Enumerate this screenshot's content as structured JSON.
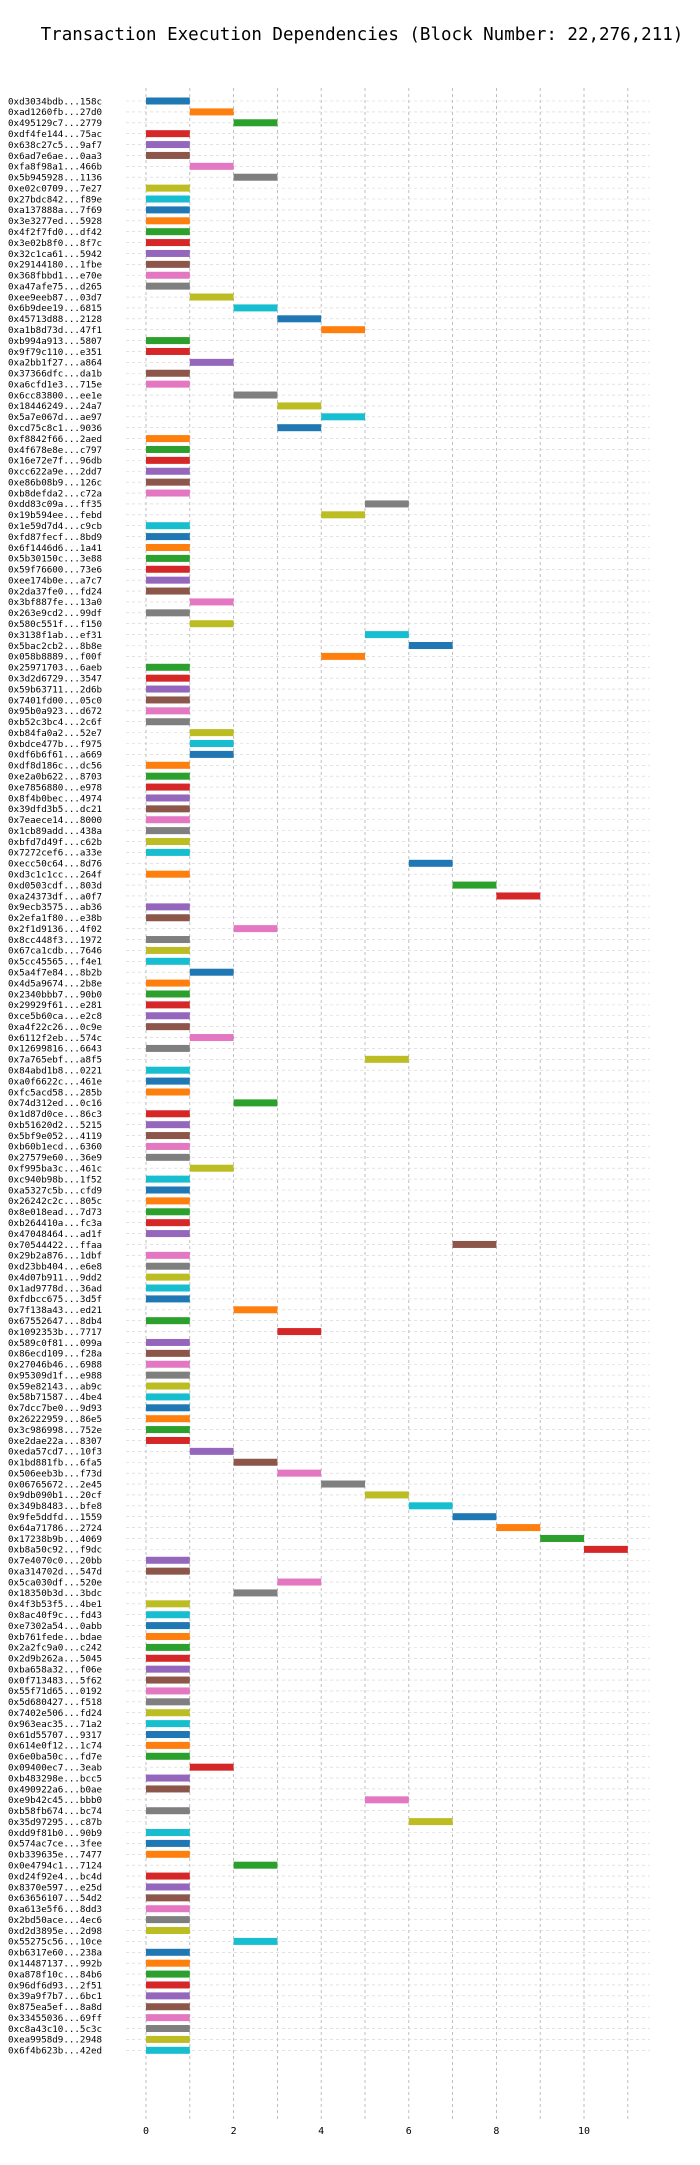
{
  "chart_data": {
    "type": "bar",
    "orientation": "horizontal",
    "title": "Transaction Execution Dependencies (Block Number: 22,276,211)",
    "xlabel": "",
    "ylabel": "",
    "xlim": [
      -0.5,
      11.5
    ],
    "xticks": [
      0,
      2,
      4,
      6,
      8,
      10
    ],
    "grid": true,
    "colors": [
      "#1f77b4",
      "#ff7f0e",
      "#2ca02c",
      "#d62728",
      "#9467bd",
      "#8c564b",
      "#e377c2",
      "#7f7f7f",
      "#bcbd22",
      "#17becf"
    ],
    "transactions": [
      {
        "label": "0xd3034bdb...158c",
        "start": 0
      },
      {
        "label": "0xad1260fb...27d0",
        "start": 1
      },
      {
        "label": "0x495129c7...2779",
        "start": 2
      },
      {
        "label": "0xdf4fe144...75ac",
        "start": 0
      },
      {
        "label": "0x638c27c5...9af7",
        "start": 0
      },
      {
        "label": "0x6ad7e6ae...0aa3",
        "start": 0
      },
      {
        "label": "0xfa8f98a1...466b",
        "start": 1
      },
      {
        "label": "0x5b945928...1136",
        "start": 2
      },
      {
        "label": "0xe02c0709...7e27",
        "start": 0
      },
      {
        "label": "0x27bdc842...f89e",
        "start": 0
      },
      {
        "label": "0xa137888a...7f69",
        "start": 0
      },
      {
        "label": "0x3e3277ed...5928",
        "start": 0
      },
      {
        "label": "0x4f2f7fd0...df42",
        "start": 0
      },
      {
        "label": "0x3e02b8f0...8f7c",
        "start": 0
      },
      {
        "label": "0x32c1ca61...5942",
        "start": 0
      },
      {
        "label": "0x29144180...1fbe",
        "start": 0
      },
      {
        "label": "0x368fbbd1...e70e",
        "start": 0
      },
      {
        "label": "0xa47afe75...d265",
        "start": 0
      },
      {
        "label": "0xee9eeb87...03d7",
        "start": 1
      },
      {
        "label": "0x6b9dee19...6815",
        "start": 2
      },
      {
        "label": "0x45713d88...2128",
        "start": 3
      },
      {
        "label": "0xa1b8d73d...47f1",
        "start": 4
      },
      {
        "label": "0xb994a913...5807",
        "start": 0
      },
      {
        "label": "0x9f79c110...e351",
        "start": 0
      },
      {
        "label": "0xa2bb1f27...a864",
        "start": 1
      },
      {
        "label": "0x37366dfc...da1b",
        "start": 0
      },
      {
        "label": "0xa6cfd1e3...715e",
        "start": 0
      },
      {
        "label": "0x6cc83800...ee1e",
        "start": 2
      },
      {
        "label": "0x18446249...24a7",
        "start": 3
      },
      {
        "label": "0x5a7e067d...ae97",
        "start": 4
      },
      {
        "label": "0xcd75c8c1...9036",
        "start": 3
      },
      {
        "label": "0xf8842f66...2aed",
        "start": 0
      },
      {
        "label": "0x4f678e8e...c797",
        "start": 0
      },
      {
        "label": "0x16e72e7f...96db",
        "start": 0
      },
      {
        "label": "0xcc622a9e...2dd7",
        "start": 0
      },
      {
        "label": "0xe86b08b9...126c",
        "start": 0
      },
      {
        "label": "0xb8defda2...c72a",
        "start": 0
      },
      {
        "label": "0xdd83c09a...ff35",
        "start": 5
      },
      {
        "label": "0x19b594ee...febd",
        "start": 4
      },
      {
        "label": "0x1e59d7d4...c9cb",
        "start": 0
      },
      {
        "label": "0xfd87fecf...8bd9",
        "start": 0
      },
      {
        "label": "0x6f1446d6...1a41",
        "start": 0
      },
      {
        "label": "0x5b30150c...3e88",
        "start": 0
      },
      {
        "label": "0x59f76600...73e6",
        "start": 0
      },
      {
        "label": "0xee174b0e...a7c7",
        "start": 0
      },
      {
        "label": "0x2da37fe0...fd24",
        "start": 0
      },
      {
        "label": "0x3bf887fe...13a0",
        "start": 1
      },
      {
        "label": "0x263e9cd2...99df",
        "start": 0
      },
      {
        "label": "0x580c551f...f150",
        "start": 1
      },
      {
        "label": "0x3138f1ab...ef31",
        "start": 5
      },
      {
        "label": "0x5bac2cb2...8b8e",
        "start": 6
      },
      {
        "label": "0x058b8889...f00f",
        "start": 4
      },
      {
        "label": "0x25971703...6aeb",
        "start": 0
      },
      {
        "label": "0x3d2d6729...3547",
        "start": 0
      },
      {
        "label": "0x59b63711...2d6b",
        "start": 0
      },
      {
        "label": "0x7401fd00...05c0",
        "start": 0
      },
      {
        "label": "0x95b0a923...d672",
        "start": 0
      },
      {
        "label": "0xb52c3bc4...2c6f",
        "start": 0
      },
      {
        "label": "0xb84fa0a2...52e7",
        "start": 1
      },
      {
        "label": "0xbdce477b...f975",
        "start": 1
      },
      {
        "label": "0xdf6b6f61...a669",
        "start": 1
      },
      {
        "label": "0xdf8d186c...dc56",
        "start": 0
      },
      {
        "label": "0xe2a0b622...8703",
        "start": 0
      },
      {
        "label": "0xe7856880...e978",
        "start": 0
      },
      {
        "label": "0x8f4b0bec...4974",
        "start": 0
      },
      {
        "label": "0x39dfd3b5...dc21",
        "start": 0
      },
      {
        "label": "0x7eaece14...8000",
        "start": 0
      },
      {
        "label": "0x1cb89add...438a",
        "start": 0
      },
      {
        "label": "0xbfd7d49f...c62b",
        "start": 0
      },
      {
        "label": "0x7272cef6...a33e",
        "start": 0
      },
      {
        "label": "0xecc50c64...8d76",
        "start": 6
      },
      {
        "label": "0xd3c1c1cc...264f",
        "start": 0
      },
      {
        "label": "0xd0503cdf...803d",
        "start": 7
      },
      {
        "label": "0xa24373df...a0f7",
        "start": 8
      },
      {
        "label": "0x9ecb3575...ab36",
        "start": 0
      },
      {
        "label": "0x2efa1f80...e38b",
        "start": 0
      },
      {
        "label": "0x2f1d9136...4f02",
        "start": 2
      },
      {
        "label": "0x8cc448f3...1972",
        "start": 0
      },
      {
        "label": "0x67ca1cdb...7646",
        "start": 0
      },
      {
        "label": "0x5cc45565...f4e1",
        "start": 0
      },
      {
        "label": "0x5a4f7e84...8b2b",
        "start": 1
      },
      {
        "label": "0x4d5a9674...2b8e",
        "start": 0
      },
      {
        "label": "0x2340bbb7...90b0",
        "start": 0
      },
      {
        "label": "0x29929f61...e281",
        "start": 0
      },
      {
        "label": "0xce5b60ca...e2c8",
        "start": 0
      },
      {
        "label": "0xa4f22c26...0c9e",
        "start": 0
      },
      {
        "label": "0x6112f2eb...574c",
        "start": 1
      },
      {
        "label": "0x12699816...6643",
        "start": 0
      },
      {
        "label": "0x7a765ebf...a8f5",
        "start": 5
      },
      {
        "label": "0x84abd1b8...0221",
        "start": 0
      },
      {
        "label": "0xa0f6622c...461e",
        "start": 0
      },
      {
        "label": "0xfc5acd58...285b",
        "start": 0
      },
      {
        "label": "0x74d312ed...0c16",
        "start": 2
      },
      {
        "label": "0x1d87d0ce...86c3",
        "start": 0
      },
      {
        "label": "0xb51620d2...5215",
        "start": 0
      },
      {
        "label": "0x5bf9e052...4119",
        "start": 0
      },
      {
        "label": "0xb60b1ecd...6360",
        "start": 0
      },
      {
        "label": "0x27579e60...36e9",
        "start": 0
      },
      {
        "label": "0xf995ba3c...461c",
        "start": 1
      },
      {
        "label": "0xc940b98b...1f52",
        "start": 0
      },
      {
        "label": "0xa5327c5b...cfd9",
        "start": 0
      },
      {
        "label": "0x26242c2c...805c",
        "start": 0
      },
      {
        "label": "0x8e018ead...7d73",
        "start": 0
      },
      {
        "label": "0xb264410a...fc3a",
        "start": 0
      },
      {
        "label": "0x47048464...ad1f",
        "start": 0
      },
      {
        "label": "0x70544422...ffaa",
        "start": 7
      },
      {
        "label": "0x29b2a876...1dbf",
        "start": 0
      },
      {
        "label": "0xd23bb404...e6e8",
        "start": 0
      },
      {
        "label": "0x4d07b911...9dd2",
        "start": 0
      },
      {
        "label": "0x1ad9778d...36ad",
        "start": 0
      },
      {
        "label": "0xfdbcc675...3d5f",
        "start": 0
      },
      {
        "label": "0x7f138a43...ed21",
        "start": 2
      },
      {
        "label": "0x67552647...8db4",
        "start": 0
      },
      {
        "label": "0x1092353b...7717",
        "start": 3
      },
      {
        "label": "0x589c0f81...099a",
        "start": 0
      },
      {
        "label": "0x86ecd109...f28a",
        "start": 0
      },
      {
        "label": "0x27046b46...6988",
        "start": 0
      },
      {
        "label": "0x95309d1f...e988",
        "start": 0
      },
      {
        "label": "0x59e82143...ab9c",
        "start": 0
      },
      {
        "label": "0x58b71587...4be4",
        "start": 0
      },
      {
        "label": "0x7dcc7be0...9d93",
        "start": 0
      },
      {
        "label": "0x26222959...86e5",
        "start": 0
      },
      {
        "label": "0x3c986998...752e",
        "start": 0
      },
      {
        "label": "0xe2dae22a...8307",
        "start": 0
      },
      {
        "label": "0xeda57cd7...10f3",
        "start": 1
      },
      {
        "label": "0x1bd881fb...6fa5",
        "start": 2
      },
      {
        "label": "0x506eeb3b...f73d",
        "start": 3
      },
      {
        "label": "0x06765672...2e45",
        "start": 4
      },
      {
        "label": "0x9db090b1...20cf",
        "start": 5
      },
      {
        "label": "0x349b8483...bfe8",
        "start": 6
      },
      {
        "label": "0x9fe5ddfd...1559",
        "start": 7
      },
      {
        "label": "0x64a71786...2724",
        "start": 8
      },
      {
        "label": "0x17238b9b...4069",
        "start": 9
      },
      {
        "label": "0xb8a50c92...f9dc",
        "start": 10
      },
      {
        "label": "0x7e4070c0...20bb",
        "start": 0
      },
      {
        "label": "0xa314702d...547d",
        "start": 0
      },
      {
        "label": "0x5ca030df...520e",
        "start": 3
      },
      {
        "label": "0x18350b3d...3bdc",
        "start": 2
      },
      {
        "label": "0x4f3b53f5...4be1",
        "start": 0
      },
      {
        "label": "0x8ac40f9c...fd43",
        "start": 0
      },
      {
        "label": "0xe7302a54...0abb",
        "start": 0
      },
      {
        "label": "0xb761fede...bdae",
        "start": 0
      },
      {
        "label": "0x2a2fc9a0...c242",
        "start": 0
      },
      {
        "label": "0x2d9b262a...5045",
        "start": 0
      },
      {
        "label": "0xba658a32...f06e",
        "start": 0
      },
      {
        "label": "0x0f713483...5f62",
        "start": 0
      },
      {
        "label": "0x55f71d65...0192",
        "start": 0
      },
      {
        "label": "0x5d680427...f518",
        "start": 0
      },
      {
        "label": "0x7402e506...fd24",
        "start": 0
      },
      {
        "label": "0x963eac35...71a2",
        "start": 0
      },
      {
        "label": "0x61d55707...9317",
        "start": 0
      },
      {
        "label": "0x614e0f12...1c74",
        "start": 0
      },
      {
        "label": "0x6e0ba50c...fd7e",
        "start": 0
      },
      {
        "label": "0x09400ec7...3eab",
        "start": 1
      },
      {
        "label": "0xb483298e...bcc5",
        "start": 0
      },
      {
        "label": "0x490922a6...b0ae",
        "start": 0
      },
      {
        "label": "0xe9b42c45...bbb0",
        "start": 5
      },
      {
        "label": "0xb58fb674...bc74",
        "start": 0
      },
      {
        "label": "0x35d97295...c87b",
        "start": 6
      },
      {
        "label": "0xdd9f81b0...90b9",
        "start": 0
      },
      {
        "label": "0x574ac7ce...3fee",
        "start": 0
      },
      {
        "label": "0xb339635e...7477",
        "start": 0
      },
      {
        "label": "0x0e4794c1...7124",
        "start": 2
      },
      {
        "label": "0xd24f92e4...bc4d",
        "start": 0
      },
      {
        "label": "0x8370e597...e25d",
        "start": 0
      },
      {
        "label": "0x63656107...54d2",
        "start": 0
      },
      {
        "label": "0xa613e5f6...8dd3",
        "start": 0
      },
      {
        "label": "0x2bd50ace...4ec6",
        "start": 0
      },
      {
        "label": "0xd2d3895e...2d98",
        "start": 0
      },
      {
        "label": "0x55275c56...10ce",
        "start": 2
      },
      {
        "label": "0xb6317e60...238a",
        "start": 0
      },
      {
        "label": "0x14487137...992b",
        "start": 0
      },
      {
        "label": "0xa878f10c...84b6",
        "start": 0
      },
      {
        "label": "0x96df6d93...2f51",
        "start": 0
      },
      {
        "label": "0x39a9f7b7...6bc1",
        "start": 0
      },
      {
        "label": "0x875ea5ef...8a8d",
        "start": 0
      },
      {
        "label": "0x33455036...69ff",
        "start": 0
      },
      {
        "label": "0xc8a43c10...5c3c",
        "start": 0
      },
      {
        "label": "0xea9958d9...2948",
        "start": 0
      },
      {
        "label": "0x6f4b623b...42ed",
        "start": 0
      }
    ]
  }
}
